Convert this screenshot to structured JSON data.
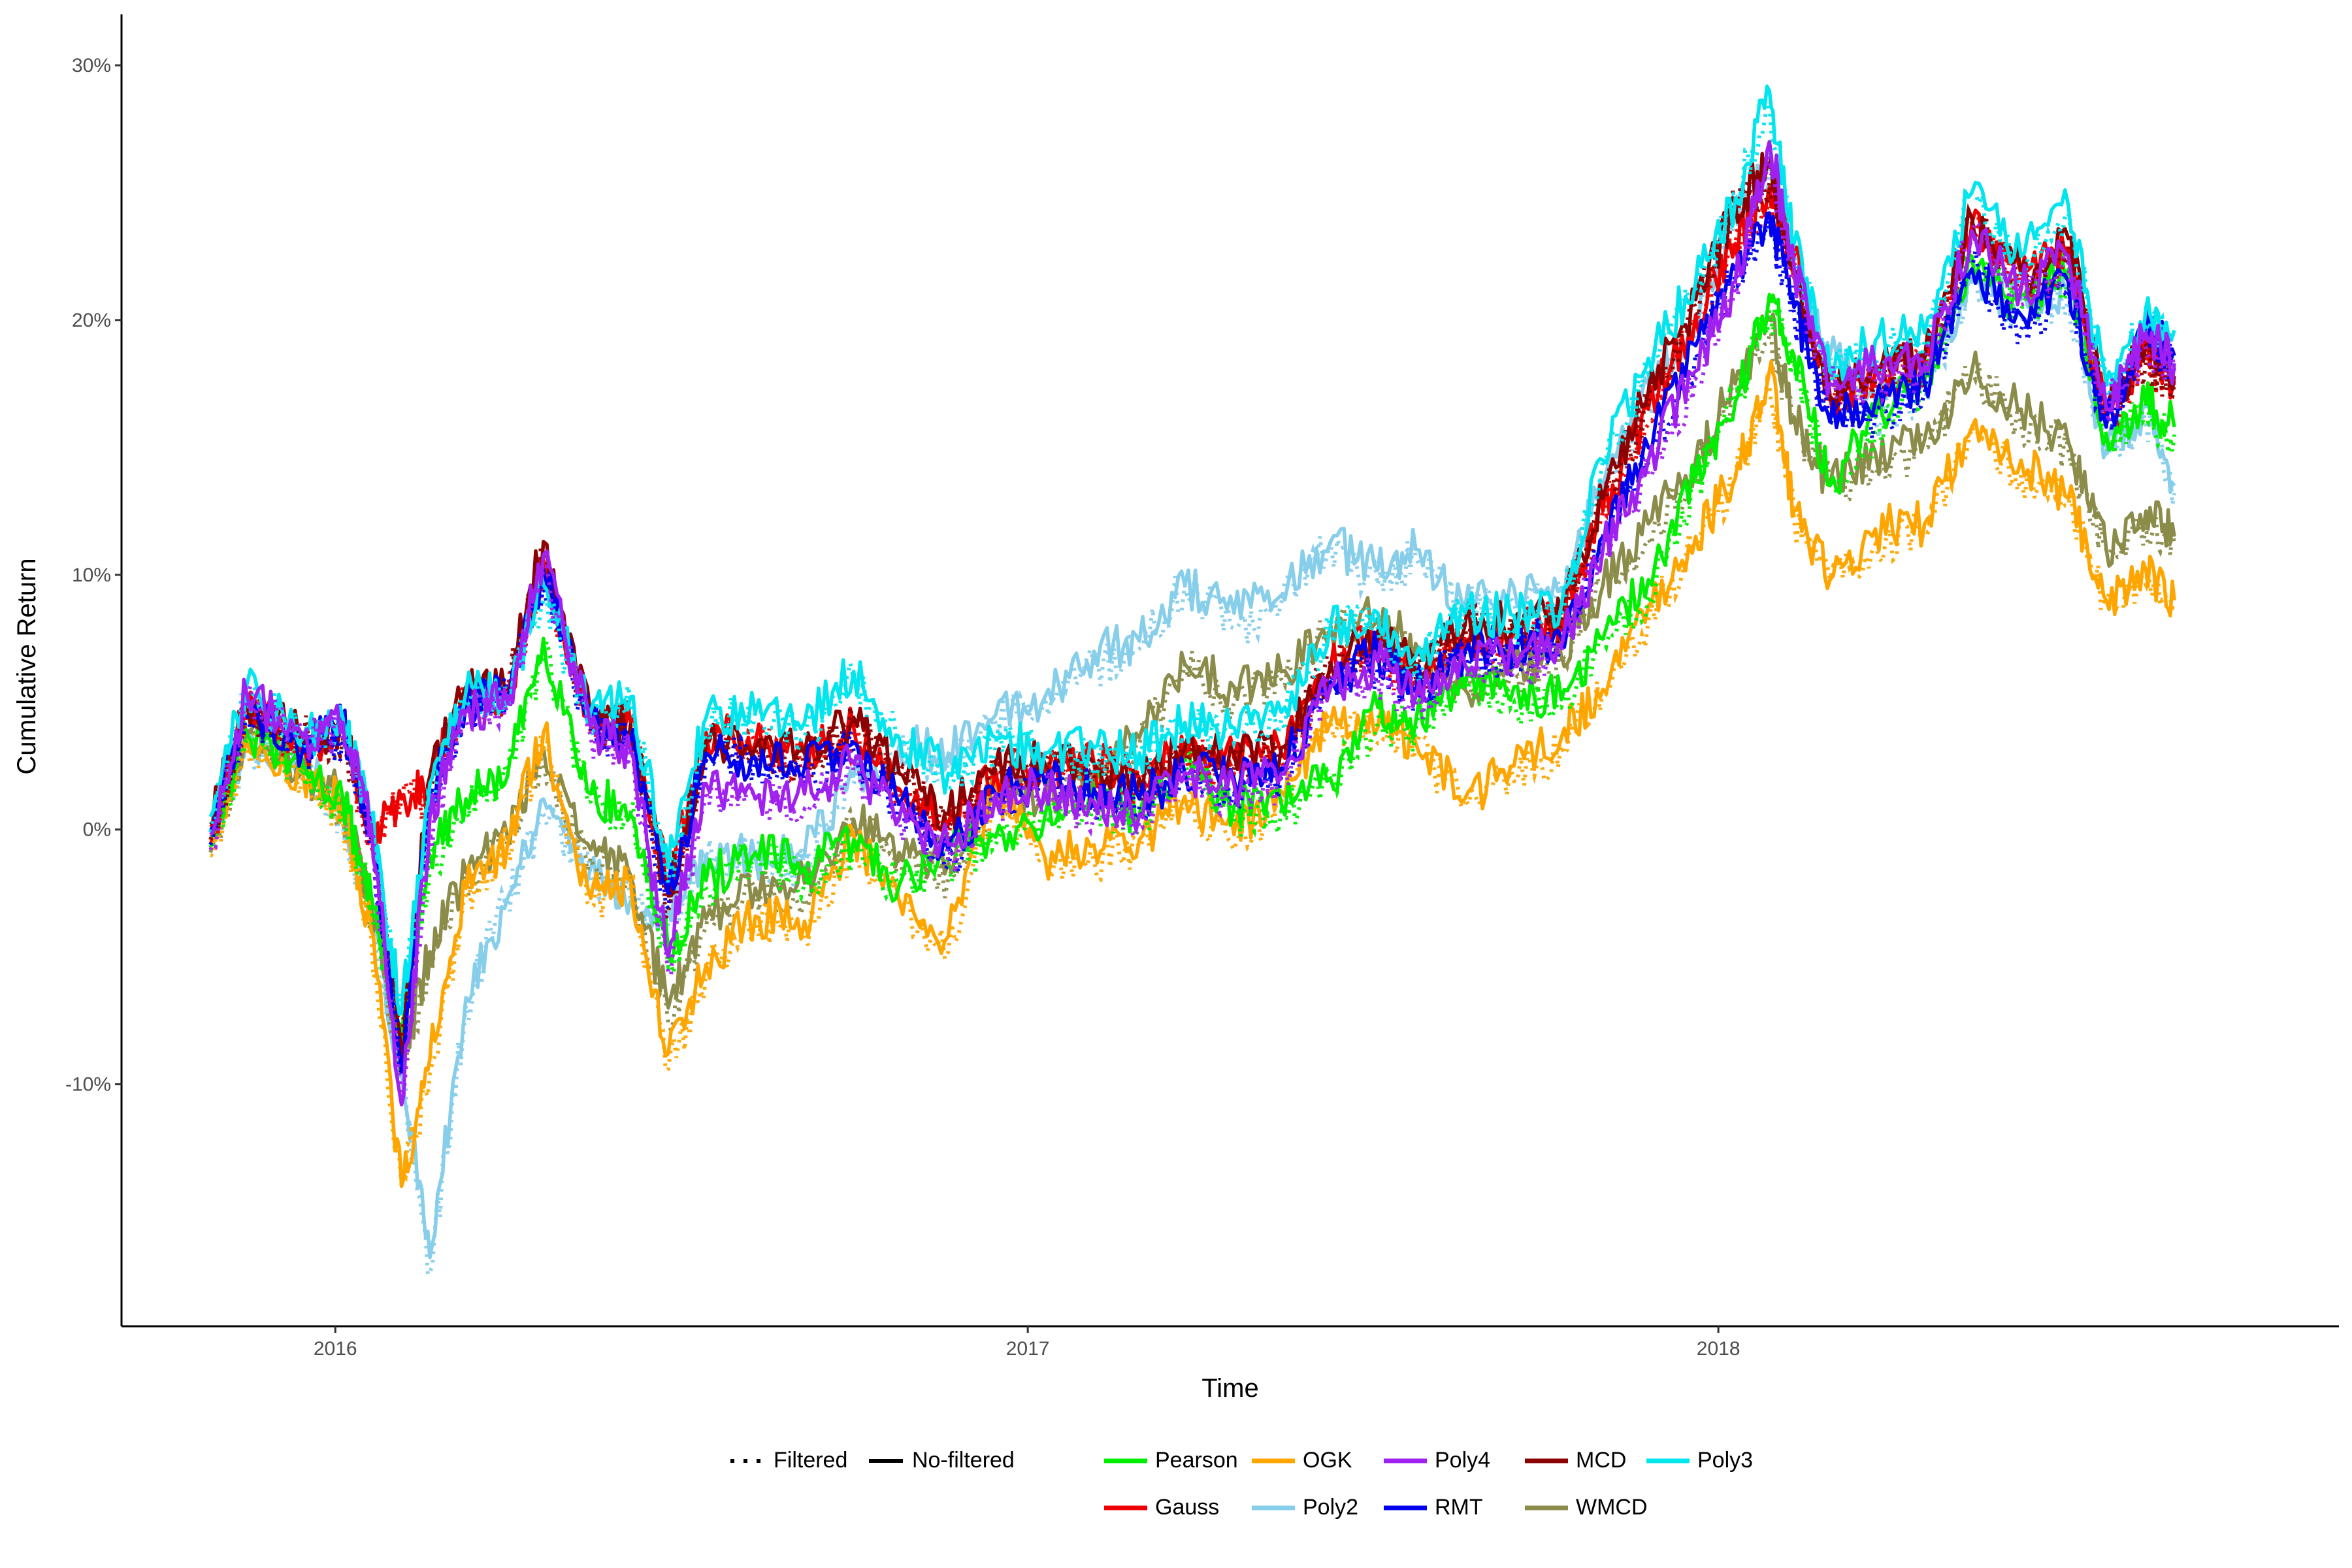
{
  "chart_data": {
    "type": "line",
    "xlabel": "Time",
    "ylabel": "Cumulative Return",
    "x_ticks": [
      "2016",
      "2017",
      "2018"
    ],
    "y_ticks": [
      "-10%",
      "0%",
      "10%",
      "20%",
      "30%"
    ],
    "xlim": [
      "2015-09-10",
      "2018-11-25"
    ],
    "ylim": [
      -19.5,
      32
    ],
    "grid": false,
    "legend_position": "bottom",
    "linetype_legend": [
      {
        "name": "Filtered",
        "style": "dotted"
      },
      {
        "name": "No-filtered",
        "style": "solid"
      }
    ],
    "x": [
      "2015-10-27",
      "2015-11-15",
      "2015-12-15",
      "2016-01-05",
      "2016-01-20",
      "2016-02-05",
      "2016-02-20",
      "2016-03-10",
      "2016-04-01",
      "2016-04-20",
      "2016-05-15",
      "2016-06-05",
      "2016-06-25",
      "2016-07-15",
      "2016-08-10",
      "2016-09-05",
      "2016-10-01",
      "2016-10-25",
      "2016-11-20",
      "2016-12-15",
      "2017-01-10",
      "2017-02-05",
      "2017-03-01",
      "2017-03-25",
      "2017-04-20",
      "2017-05-15",
      "2017-06-10",
      "2017-07-05",
      "2017-07-25",
      "2017-08-20",
      "2017-09-15",
      "2017-10-10",
      "2017-11-01",
      "2017-11-25",
      "2017-12-20",
      "2018-01-10",
      "2018-01-28",
      "2018-02-10",
      "2018-03-01",
      "2018-03-25",
      "2018-04-20",
      "2018-05-15",
      "2018-06-10",
      "2018-07-05",
      "2018-07-25",
      "2018-08-15",
      "2018-08-30"
    ],
    "series": [
      {
        "name": "Pearson",
        "color": "#00ee00",
        "values": [
          0.0,
          3.8,
          2.4,
          1.2,
          -2.6,
          -8.2,
          -1.0,
          1.2,
          2.1,
          7.5,
          1.4,
          0.6,
          -4.8,
          -2.0,
          -0.9,
          -1.5,
          -0.4,
          -2.2,
          -0.6,
          -0.3,
          0.5,
          1.6,
          0.6,
          2.8,
          0.9,
          1.0,
          2.0,
          4.8,
          4.2,
          5.6,
          5.6,
          5.1,
          7.5,
          9.8,
          13.8,
          16.8,
          21.0,
          18.6,
          13.5,
          16.2,
          17.6,
          22.5,
          21.0,
          22.0,
          15.5,
          16.7,
          15.8
        ]
      },
      {
        "name": "Gauss",
        "color": "#ee0000",
        "values": [
          0.2,
          4.9,
          3.2,
          4.0,
          -0.3,
          1.2,
          1.8,
          5.4,
          5.2,
          10.6,
          4.1,
          4.2,
          -2.0,
          3.8,
          3.4,
          3.0,
          4.0,
          1.6,
          0.2,
          2.3,
          2.3,
          2.6,
          2.0,
          3.0,
          2.8,
          3.0,
          6.3,
          7.5,
          5.8,
          7.5,
          7.7,
          8.2,
          12.5,
          16.5,
          20.2,
          23.0,
          25.2,
          22.5,
          17.0,
          18.0,
          18.5,
          23.8,
          21.8,
          22.8,
          16.2,
          19.0,
          17.6
        ]
      },
      {
        "name": "OGK",
        "color": "#ffa500",
        "values": [
          -0.4,
          3.5,
          2.1,
          1.0,
          -4.0,
          -14.0,
          -9.0,
          -2.3,
          -0.6,
          3.8,
          -2.7,
          -2.0,
          -8.8,
          -5.3,
          -3.4,
          -3.6,
          -0.2,
          -2.8,
          -4.2,
          1.7,
          -1.1,
          -0.6,
          -0.4,
          1.3,
          -0.2,
          1.5,
          4.2,
          4.0,
          3.4,
          1.2,
          2.5,
          3.6,
          5.5,
          8.8,
          11.5,
          13.8,
          18.0,
          12.5,
          9.8,
          11.8,
          12.0,
          15.8,
          14.5,
          13.0,
          9.0,
          10.2,
          9.0
        ]
      },
      {
        "name": "Poly2",
        "color": "#87ceeb",
        "values": [
          0.0,
          3.6,
          2.5,
          0.8,
          -3.2,
          -9.5,
          -16.8,
          -6.6,
          -2.7,
          1.2,
          -1.5,
          -2.8,
          -3.2,
          -1.0,
          -1.1,
          -1.0,
          2.1,
          3.3,
          3.0,
          4.5,
          5.2,
          7.0,
          7.4,
          9.6,
          8.5,
          9.2,
          11.3,
          10.2,
          11.0,
          8.7,
          9.5,
          9.5,
          13.5,
          17.5,
          19.8,
          24.0,
          26.5,
          22.0,
          18.6,
          16.8,
          17.5,
          21.5,
          20.8,
          21.2,
          14.8,
          16.6,
          13.5
        ]
      },
      {
        "name": "Poly4",
        "color": "#a020f0",
        "values": [
          -0.2,
          5.4,
          3.6,
          4.2,
          0.2,
          -10.8,
          0.5,
          4.6,
          5.0,
          10.8,
          4.0,
          3.1,
          -5.0,
          1.8,
          1.2,
          1.4,
          2.6,
          0.4,
          -0.6,
          1.4,
          1.6,
          1.1,
          0.6,
          2.2,
          1.8,
          2.2,
          5.6,
          6.6,
          5.2,
          6.5,
          6.8,
          7.2,
          11.0,
          14.5,
          18.0,
          21.5,
          27.0,
          22.0,
          17.5,
          18.2,
          18.2,
          23.5,
          21.2,
          22.5,
          16.5,
          19.5,
          18.3
        ]
      },
      {
        "name": "RMT",
        "color": "#0000ee",
        "values": [
          0.0,
          4.9,
          3.2,
          4.2,
          0.0,
          -9.5,
          1.5,
          5.0,
          5.3,
          10.2,
          4.2,
          3.5,
          -2.5,
          3.0,
          2.8,
          2.4,
          3.4,
          1.0,
          -0.8,
          1.4,
          1.8,
          1.6,
          1.2,
          2.2,
          2.0,
          2.4,
          5.8,
          7.0,
          5.4,
          7.0,
          7.2,
          7.5,
          11.5,
          15.0,
          19.0,
          22.0,
          24.2,
          20.5,
          16.0,
          16.8,
          17.5,
          22.0,
          20.2,
          21.5,
          15.8,
          19.8,
          18.6
        ]
      },
      {
        "name": "MCD",
        "color": "#8b0000",
        "values": [
          0.2,
          5.0,
          3.6,
          4.1,
          0.1,
          -9.0,
          2.1,
          5.6,
          5.5,
          11.3,
          4.4,
          4.1,
          -2.6,
          3.5,
          3.2,
          3.0,
          4.4,
          2.2,
          0.6,
          2.6,
          2.6,
          2.6,
          2.0,
          3.2,
          3.0,
          3.2,
          6.5,
          7.8,
          6.2,
          8.0,
          8.2,
          8.5,
          13.0,
          17.2,
          20.8,
          24.5,
          26.0,
          22.0,
          17.0,
          18.2,
          18.5,
          24.0,
          21.8,
          23.2,
          16.5,
          19.0,
          17.8
        ]
      },
      {
        "name": "WMCD",
        "color": "#8b8b4a",
        "values": [
          -0.3,
          3.9,
          2.3,
          1.3,
          -3.0,
          -9.2,
          -4.8,
          -1.7,
          -0.3,
          3.2,
          -0.8,
          -1.8,
          -7.0,
          -3.5,
          -2.3,
          -2.1,
          0.4,
          -0.9,
          -1.3,
          1.6,
          1.2,
          2.2,
          3.6,
          6.5,
          5.6,
          6.2,
          8.0,
          8.3,
          7.3,
          5.5,
          6.5,
          6.8,
          9.6,
          12.0,
          14.5,
          17.5,
          20.0,
          16.2,
          13.5,
          14.8,
          15.3,
          18.0,
          16.5,
          15.2,
          11.0,
          12.5,
          11.5
        ]
      },
      {
        "name": "Poly3",
        "color": "#00e5ee",
        "values": [
          0.5,
          5.6,
          3.6,
          4.4,
          0.6,
          -7.2,
          1.8,
          5.4,
          5.2,
          9.6,
          4.6,
          5.2,
          -1.5,
          4.4,
          4.6,
          4.2,
          6.2,
          3.6,
          2.2,
          3.6,
          3.0,
          3.2,
          3.0,
          4.2,
          4.0,
          4.6,
          8.0,
          8.5,
          6.8,
          8.5,
          8.4,
          8.8,
          14.5,
          18.5,
          21.5,
          24.8,
          29.0,
          23.0,
          18.0,
          19.2,
          19.5,
          25.0,
          22.5,
          24.5,
          17.5,
          20.5,
          19.6
        ]
      }
    ]
  }
}
